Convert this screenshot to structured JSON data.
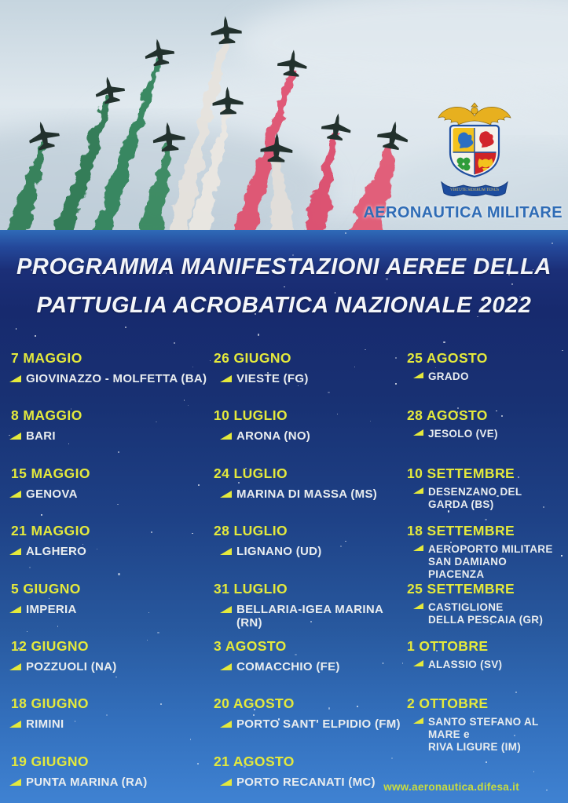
{
  "photo": {
    "brand": "AERONAUTICA MILITARE",
    "crest_motto": "VIRTUTE SIDERUM TENUS",
    "smoke_colors": {
      "green": "#2e7d53",
      "white": "#e7e3dd",
      "red": "#e0506e"
    }
  },
  "title": {
    "line1": "PROGRAMMA MANIFESTAZIONI AEREE DELLA",
    "line2": "PATTUGLIA ACROBATICA NAZIONALE 2022"
  },
  "schedule": {
    "columns": [
      [
        {
          "date": "7 MAGGIO",
          "location": "GIOVINAZZO - MOLFETTA (BA)"
        },
        {
          "date": "8 MAGGIO",
          "location": "BARI"
        },
        {
          "date": "15 MAGGIO",
          "location": "GENOVA"
        },
        {
          "date": "21 MAGGIO",
          "location": "ALGHERO"
        },
        {
          "date": "5 GIUGNO",
          "location": "IMPERIA"
        },
        {
          "date": "12 GIUGNO",
          "location": "POZZUOLI (NA)"
        },
        {
          "date": "18 GIUGNO",
          "location": "RIMINI"
        },
        {
          "date": "19 GIUGNO",
          "location": "PUNTA MARINA (RA)"
        }
      ],
      [
        {
          "date": "26 GIUGNO",
          "location": "VIESTE (FG)"
        },
        {
          "date": "10 LUGLIO",
          "location": "ARONA (NO)"
        },
        {
          "date": "24 LUGLIO",
          "location": "MARINA DI MASSA (MS)"
        },
        {
          "date": "28 LUGLIO",
          "location": "LIGNANO (UD)"
        },
        {
          "date": "31 LUGLIO",
          "location": "BELLARIA-IGEA MARINA (RN)"
        },
        {
          "date": "3 AGOSTO",
          "location": "COMACCHIO (FE)"
        },
        {
          "date": "20 AGOSTO",
          "location": "PORTO SANT' ELPIDIO (FM)"
        },
        {
          "date": "21 AGOSTO",
          "location": "PORTO RECANATI (MC)"
        }
      ],
      [
        {
          "date": "25 AGOSTO",
          "location": "GRADO"
        },
        {
          "date": "28 AGOSTO",
          "location": "JESOLO (VE)"
        },
        {
          "date": "10 SETTEMBRE",
          "location": "DESENZANO DEL GARDA (BS)"
        },
        {
          "date": "18 SETTEMBRE",
          "location": "AEROPORTO MILITARE\nSAN DAMIANO PIACENZA"
        },
        {
          "date": "25 SETTEMBRE",
          "location": "CASTIGLIONE\nDELLA PESCAIA (GR)"
        },
        {
          "date": "1 OTTOBRE",
          "location": "ALASSIO (SV)"
        },
        {
          "date": "2 OTTOBRE",
          "location": "SANTO STEFANO AL MARE e\nRIVA LIGURE (IM)"
        }
      ]
    ]
  },
  "footer": {
    "website": "www.aeronautica.difesa.it"
  },
  "colors": {
    "date_yellow": "#e4e93c",
    "location_white": "#e9edef",
    "accent_blue": "#2f6cb6",
    "background_navy": "#172a6e"
  }
}
